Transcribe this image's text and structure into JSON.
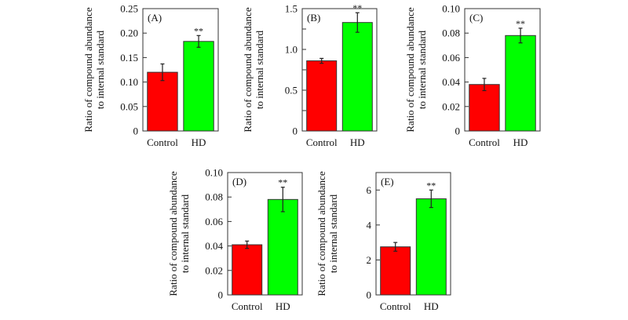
{
  "chart_data": [
    {
      "type": "bar",
      "panel_label": "(A)",
      "categories": [
        "Control",
        "HD"
      ],
      "values": [
        0.12,
        0.183
      ],
      "errors": [
        0.017,
        0.012
      ],
      "significance": [
        "",
        "**"
      ],
      "colors": [
        "#ff0000",
        "#00ff00"
      ],
      "ylabel": [
        "Ratio of compound abundance",
        "to internal standard"
      ],
      "ylim": [
        0,
        0.25
      ],
      "yticks": [
        0,
        0.05,
        0.1,
        0.15,
        0.2,
        0.25
      ],
      "ytick_labels": [
        "0",
        "0.05",
        "0.10",
        "0.15",
        "0.20",
        "0.25"
      ],
      "minor_yticks": [],
      "grid": false
    },
    {
      "type": "bar",
      "panel_label": "(B)",
      "categories": [
        "Control",
        "HD"
      ],
      "values": [
        0.86,
        1.33
      ],
      "errors": [
        0.03,
        0.12
      ],
      "significance": [
        "",
        "**"
      ],
      "colors": [
        "#ff0000",
        "#00ff00"
      ],
      "ylabel": [
        "Ratio of compound abundance",
        "to internal standard"
      ],
      "ylim": [
        0,
        1.5
      ],
      "yticks": [
        0,
        0.5,
        1.0,
        1.5
      ],
      "ytick_labels": [
        "0",
        "0.5",
        "1.0",
        "1.5"
      ],
      "minor_yticks": [
        0.25,
        0.75,
        1.25
      ],
      "grid": false
    },
    {
      "type": "bar",
      "panel_label": "(C)",
      "categories": [
        "Control",
        "HD"
      ],
      "values": [
        0.038,
        0.078
      ],
      "errors": [
        0.005,
        0.006
      ],
      "significance": [
        "",
        "**"
      ],
      "colors": [
        "#ff0000",
        "#00ff00"
      ],
      "ylabel": [
        "Ratio of compound abundance",
        "to internal standard"
      ],
      "ylim": [
        0,
        0.1
      ],
      "yticks": [
        0,
        0.02,
        0.04,
        0.06,
        0.08,
        0.1
      ],
      "ytick_labels": [
        "0",
        "0.02",
        "0.04",
        "0.06",
        "0.08",
        "0.10"
      ],
      "minor_yticks": [],
      "grid": false
    },
    {
      "type": "bar",
      "panel_label": "(D)",
      "categories": [
        "Control",
        "HD"
      ],
      "values": [
        0.041,
        0.078
      ],
      "errors": [
        0.003,
        0.01
      ],
      "significance": [
        "",
        "**"
      ],
      "colors": [
        "#ff0000",
        "#00ff00"
      ],
      "ylabel": [
        "Ratio of compound abundance",
        "to internal standard"
      ],
      "ylim": [
        0,
        0.1
      ],
      "yticks": [
        0,
        0.02,
        0.04,
        0.06,
        0.08,
        0.1
      ],
      "ytick_labels": [
        "0",
        "0.02",
        "0.04",
        "0.06",
        "0.08",
        "0.10"
      ],
      "minor_yticks": [],
      "grid": false
    },
    {
      "type": "bar",
      "panel_label": "(E)",
      "categories": [
        "Control",
        "HD"
      ],
      "values": [
        2.75,
        5.5
      ],
      "errors": [
        0.25,
        0.5
      ],
      "significance": [
        "",
        "**"
      ],
      "colors": [
        "#ff0000",
        "#00ff00"
      ],
      "ylabel": [
        "Ratio of compound abundance",
        "to internal standard"
      ],
      "ylim": [
        0,
        7
      ],
      "yticks": [
        0,
        2,
        4,
        6
      ],
      "ytick_labels": [
        "0",
        "2",
        "4",
        "6"
      ],
      "minor_yticks": [],
      "grid": false
    }
  ]
}
